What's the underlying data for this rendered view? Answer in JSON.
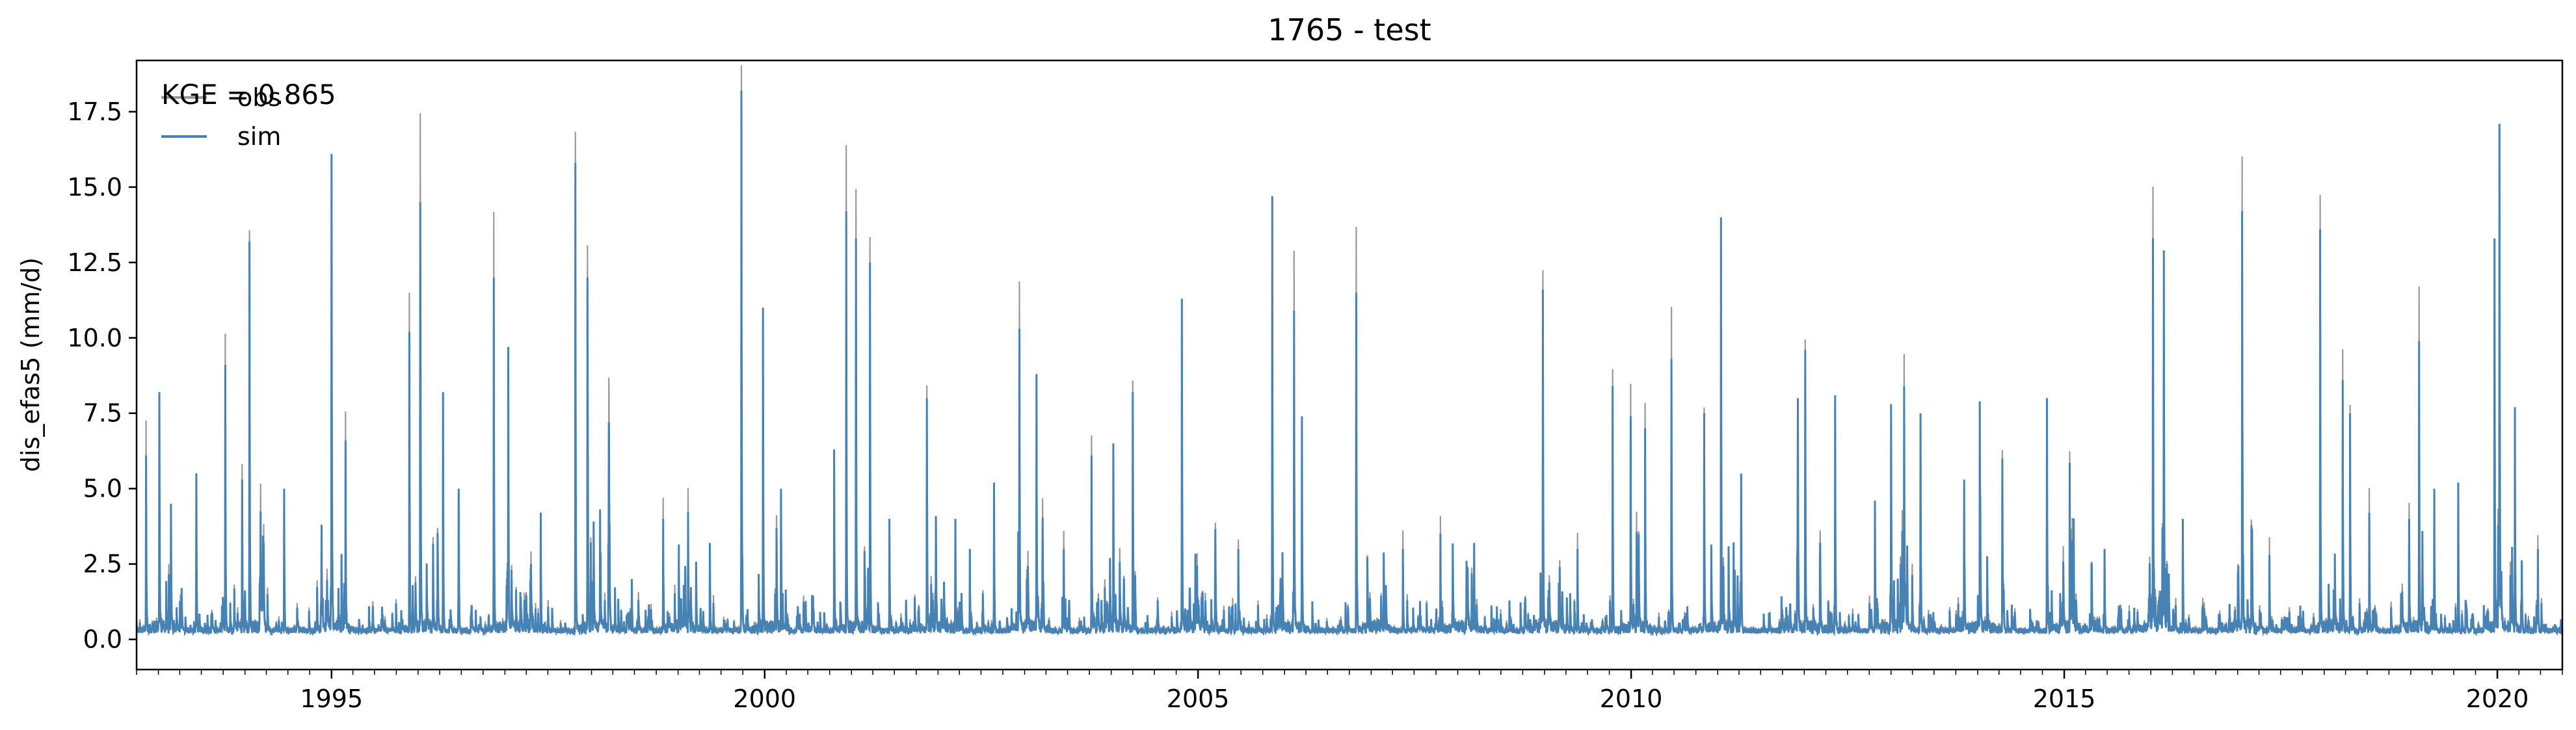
{
  "chart_data": {
    "type": "line",
    "title": "1765 - test",
    "xlabel": "",
    "ylabel": "dis_efas5 (mm/d)",
    "annotation": "KGE = 0.865",
    "x_range": [
      "1992-10-01",
      "2020-10-01"
    ],
    "ylim": [
      -1.0,
      19.2
    ],
    "x_ticks": [
      "1995",
      "2000",
      "2005",
      "2010",
      "2015",
      "2020"
    ],
    "y_ticks": [
      "0.0",
      "2.5",
      "5.0",
      "7.5",
      "10.0",
      "12.5",
      "15.0",
      "17.5"
    ],
    "grid": false,
    "legend": {
      "placement": "top-left",
      "entries": [
        "obs",
        "sim"
      ]
    },
    "colors": {
      "obs": "#999999",
      "sim": "#4682b4"
    },
    "series": [
      {
        "name": "obs"
      },
      {
        "name": "sim"
      }
    ],
    "peaks": [
      [
        "1992-11-10",
        6.1
      ],
      [
        "1993-01-05",
        8.2
      ],
      [
        "1993-06-10",
        5.5
      ],
      [
        "1993-10-10",
        9.1
      ],
      [
        "1993-12-20",
        5.3
      ],
      [
        "1994-01-20",
        13.2
      ],
      [
        "1994-06-15",
        5.0
      ],
      [
        "1994-11-20",
        3.8
      ],
      [
        "1995-01-01",
        16.1
      ],
      [
        "1995-03-01",
        6.6
      ],
      [
        "1995-11-25",
        10.2
      ],
      [
        "1996-01-10",
        14.5
      ],
      [
        "1996-04-15",
        8.2
      ],
      [
        "1996-06-20",
        5.0
      ],
      [
        "1996-11-15",
        12.0
      ],
      [
        "1997-01-15",
        9.7
      ],
      [
        "1997-06-01",
        4.2
      ],
      [
        "1997-10-25",
        15.8
      ],
      [
        "1997-12-15",
        12.0
      ],
      [
        "1998-03-15",
        7.2
      ],
      [
        "1998-06-20",
        2.0
      ],
      [
        "1998-10-30",
        4.0
      ],
      [
        "1999-05-15",
        3.2
      ],
      [
        "1999-09-25",
        18.2
      ],
      [
        "1999-12-25",
        11.0
      ],
      [
        "2000-03-10",
        5.0
      ],
      [
        "2000-10-20",
        6.3
      ],
      [
        "2000-12-10",
        14.2
      ],
      [
        "2001-01-20",
        13.3
      ],
      [
        "2001-03-20",
        12.5
      ],
      [
        "2001-06-10",
        4.0
      ],
      [
        "2001-11-15",
        8.0
      ],
      [
        "2002-03-15",
        4.0
      ],
      [
        "2002-05-15",
        3.0
      ],
      [
        "2002-08-25",
        5.2
      ],
      [
        "2002-12-10",
        10.3
      ],
      [
        "2003-02-20",
        8.8
      ],
      [
        "2003-06-15",
        3.0
      ],
      [
        "2003-10-10",
        6.1
      ],
      [
        "2004-01-10",
        6.5
      ],
      [
        "2004-04-01",
        8.2
      ],
      [
        "2004-10-25",
        11.3
      ],
      [
        "2005-06-20",
        3.0
      ],
      [
        "2005-11-10",
        14.7
      ],
      [
        "2006-02-10",
        10.9
      ],
      [
        "2006-03-15",
        7.4
      ],
      [
        "2006-10-30",
        11.5
      ],
      [
        "2007-05-15",
        3.0
      ],
      [
        "2007-10-20",
        3.5
      ],
      [
        "2008-03-10",
        3.2
      ],
      [
        "2008-12-25",
        11.6
      ],
      [
        "2009-05-20",
        3.0
      ],
      [
        "2009-10-15",
        8.4
      ],
      [
        "2009-12-30",
        7.4
      ],
      [
        "2010-03-01",
        7.0
      ],
      [
        "2010-06-20",
        9.3
      ],
      [
        "2010-11-05",
        7.5
      ],
      [
        "2011-01-15",
        14.0
      ],
      [
        "2011-04-10",
        5.5
      ],
      [
        "2011-12-05",
        8.0
      ],
      [
        "2012-01-05",
        9.6
      ],
      [
        "2012-05-10",
        8.1
      ],
      [
        "2012-10-25",
        4.6
      ],
      [
        "2013-01-01",
        7.8
      ],
      [
        "2013-02-25",
        8.4
      ],
      [
        "2013-05-05",
        7.5
      ],
      [
        "2013-11-05",
        5.3
      ],
      [
        "2014-01-10",
        7.9
      ],
      [
        "2014-04-15",
        6.0
      ],
      [
        "2014-10-20",
        8.0
      ],
      [
        "2015-02-10",
        4.0
      ],
      [
        "2015-06-20",
        3.0
      ],
      [
        "2016-01-10",
        13.3
      ],
      [
        "2016-02-25",
        12.9
      ],
      [
        "2016-05-15",
        4.0
      ],
      [
        "2017-01-20",
        14.2
      ],
      [
        "2017-05-15",
        2.8
      ],
      [
        "2017-12-15",
        13.6
      ],
      [
        "2018-03-20",
        8.6
      ],
      [
        "2018-04-20",
        7.5
      ],
      [
        "2018-07-10",
        4.2
      ],
      [
        "2018-12-25",
        4.0
      ],
      [
        "2019-02-05",
        9.9
      ],
      [
        "2019-04-10",
        5.0
      ],
      [
        "2019-07-20",
        5.2
      ],
      [
        "2019-12-20",
        13.3
      ],
      [
        "2020-01-10",
        17.1
      ],
      [
        "2020-03-15",
        7.7
      ],
      [
        "2020-06-20",
        3.0
      ]
    ]
  }
}
